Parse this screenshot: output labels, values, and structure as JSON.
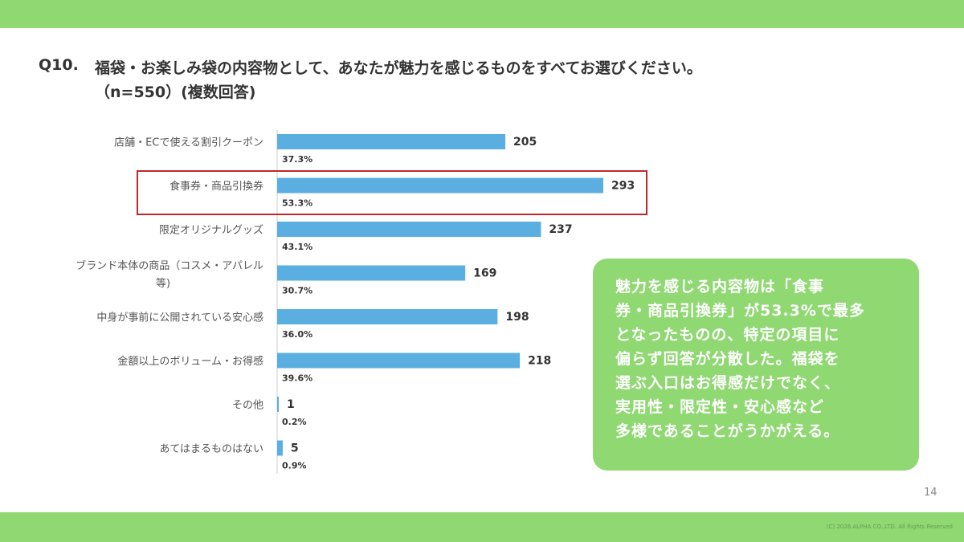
{
  "question": {
    "number": "Q10.",
    "text_line1": "福袋・お楽しみ袋の内容物として、あなたが魅力を感じるものをすべてお選びください。",
    "text_line2": "（n=550）(複数回答)"
  },
  "chart_data": {
    "type": "bar",
    "orientation": "horizontal",
    "categories": [
      [
        "店舗・ECで使える割引クーポン"
      ],
      [
        "食事券・商品引換券"
      ],
      [
        "限定オリジナルグッズ"
      ],
      [
        "ブランド本体の商品（コスメ・アパレル",
        "等)"
      ],
      [
        "中身が事前に公開されている安心感"
      ],
      [
        "金額以上のボリューム・お得感"
      ],
      [
        "その他"
      ],
      [
        "あてはまるものはない"
      ]
    ],
    "values": [
      205,
      293,
      237,
      169,
      198,
      218,
      1,
      5
    ],
    "percentages": [
      "37.3%",
      "53.3%",
      "43.1%",
      "30.7%",
      "36.0%",
      "39.6%",
      "0.2%",
      "0.9%"
    ],
    "xlim": [
      0,
      400
    ],
    "highlight_category": "食事券・商品引換券",
    "bar_color": "#5aafe0",
    "highlight_color": "#c0262d"
  },
  "summary": {
    "lines": [
      "魅力を感じる内容物は「食事",
      "券・商品引換券」が53.3%で最多",
      "となったものの、特定の項目に",
      "偏らず回答が分散した。福袋を",
      "選ぶ入口はお得感だけでなく、",
      "実用性・限定性・安心感など",
      "多様であることがうかがえる。"
    ]
  },
  "footer": {
    "page_number": "14",
    "copyright": "(C) 2026 ALPHA CO.,LTD. All Rights Reserved"
  },
  "theme": {
    "accent": "#8fd872"
  }
}
